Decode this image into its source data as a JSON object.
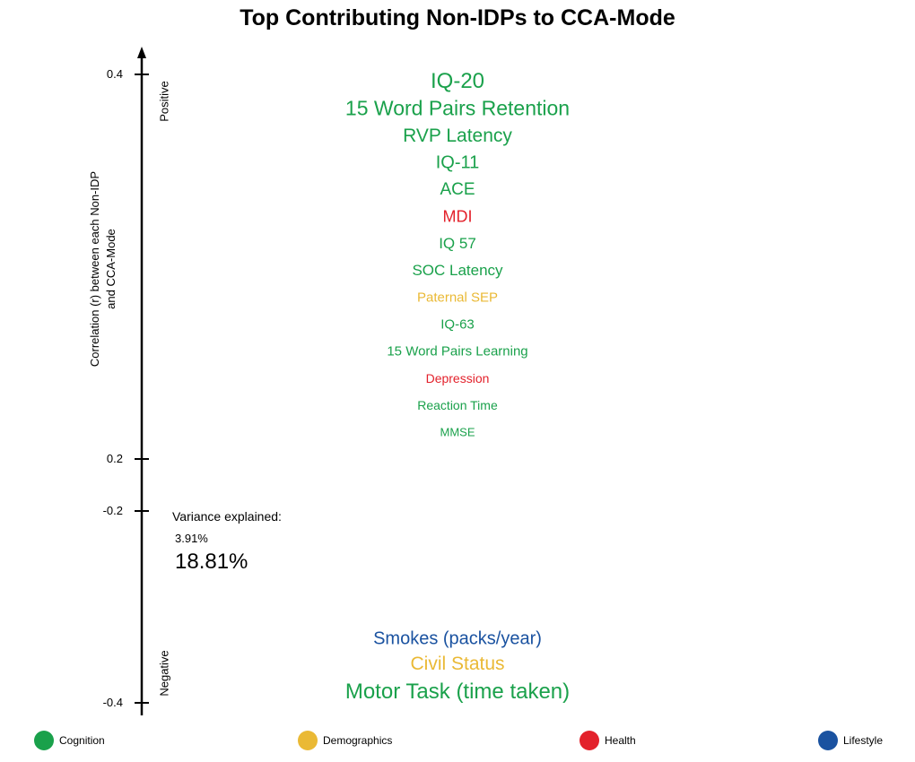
{
  "colors": {
    "Cognition": "#1aa14b",
    "Demographics": "#eab935",
    "Health": "#e3212b",
    "Lifestyle": "#1a52a0"
  },
  "chart_data": {
    "type": "text-ranking",
    "title": "Top Contributing Non-IDPs to CCA-Mode",
    "ylabel_line1": "Correlation (r)  between each Non-IDP",
    "ylabel_line2": "and CCA-Mode",
    "direction_labels": {
      "positive": "Positive",
      "negative": "Negative"
    },
    "yticks": [
      "0.4",
      "0.2",
      "-0.2",
      "-0.4"
    ],
    "positive_items": [
      {
        "label": "IQ-20",
        "category": "Cognition"
      },
      {
        "label": "15 Word Pairs Retention",
        "category": "Cognition"
      },
      {
        "label": "RVP Latency",
        "category": "Cognition"
      },
      {
        "label": "IQ-11",
        "category": "Cognition"
      },
      {
        "label": "ACE",
        "category": "Cognition"
      },
      {
        "label": "MDI",
        "category": "Health"
      },
      {
        "label": "IQ 57",
        "category": "Cognition"
      },
      {
        "label": "SOC Latency",
        "category": "Cognition"
      },
      {
        "label": "Paternal SEP",
        "category": "Demographics"
      },
      {
        "label": "IQ-63",
        "category": "Cognition"
      },
      {
        "label": "15 Word Pairs Learning",
        "category": "Cognition"
      },
      {
        "label": "Depression",
        "category": "Health"
      },
      {
        "label": "Reaction Time",
        "category": "Cognition"
      },
      {
        "label": "MMSE",
        "category": "Cognition"
      }
    ],
    "negative_items": [
      {
        "label": "Smokes (packs/year)",
        "category": "Lifestyle"
      },
      {
        "label": "Civil Status",
        "category": "Demographics"
      },
      {
        "label": "Motor Task (time taken)",
        "category": "Cognition"
      }
    ],
    "variance": {
      "title": "Variance explained:",
      "small": "3.91%",
      "large": "18.81%"
    },
    "legend": [
      "Cognition",
      "Demographics",
      "Health",
      "Lifestyle"
    ]
  }
}
